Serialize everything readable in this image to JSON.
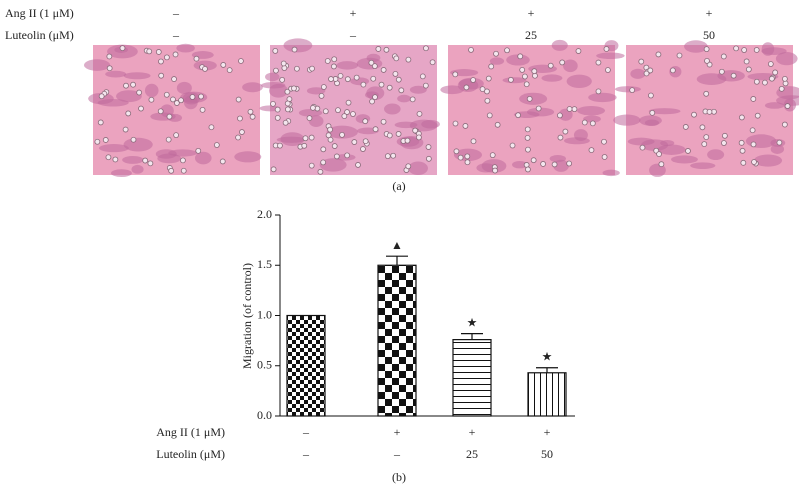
{
  "panel_a": {
    "row_labels": [
      "Ang II (1 μM)",
      "Luteolin (μM)"
    ],
    "rows": [
      [
        "–",
        "+",
        "+",
        "+"
      ],
      [
        "–",
        "–",
        "25",
        "50"
      ]
    ],
    "caption": "(a)"
  },
  "chart_data": {
    "type": "bar",
    "ylabel": "Migration (of control)",
    "categories": [
      null,
      null,
      null,
      null
    ],
    "values": [
      1.0,
      1.5,
      0.76,
      0.43
    ],
    "errors": [
      0,
      0.09,
      0.06,
      0.05
    ],
    "annotations": [
      null,
      "▲",
      "★",
      "★"
    ],
    "color": "#111111",
    "ylim": [
      0,
      2
    ],
    "yticks": [
      {
        "value": 0,
        "label": "0.0"
      },
      {
        "value": 0.5,
        "label": "0.5"
      },
      {
        "value": 1,
        "label": "1.0"
      },
      {
        "value": 1.5,
        "label": "1.5"
      },
      {
        "value": 2,
        "label": "2.0"
      }
    ],
    "row_labels": [
      "Ang II (1 μM)",
      "Luteolin (μM)"
    ],
    "rows": [
      [
        "–",
        "+",
        "+",
        "+"
      ],
      [
        "–",
        "–",
        "25",
        "50"
      ]
    ],
    "caption": "(b)"
  }
}
